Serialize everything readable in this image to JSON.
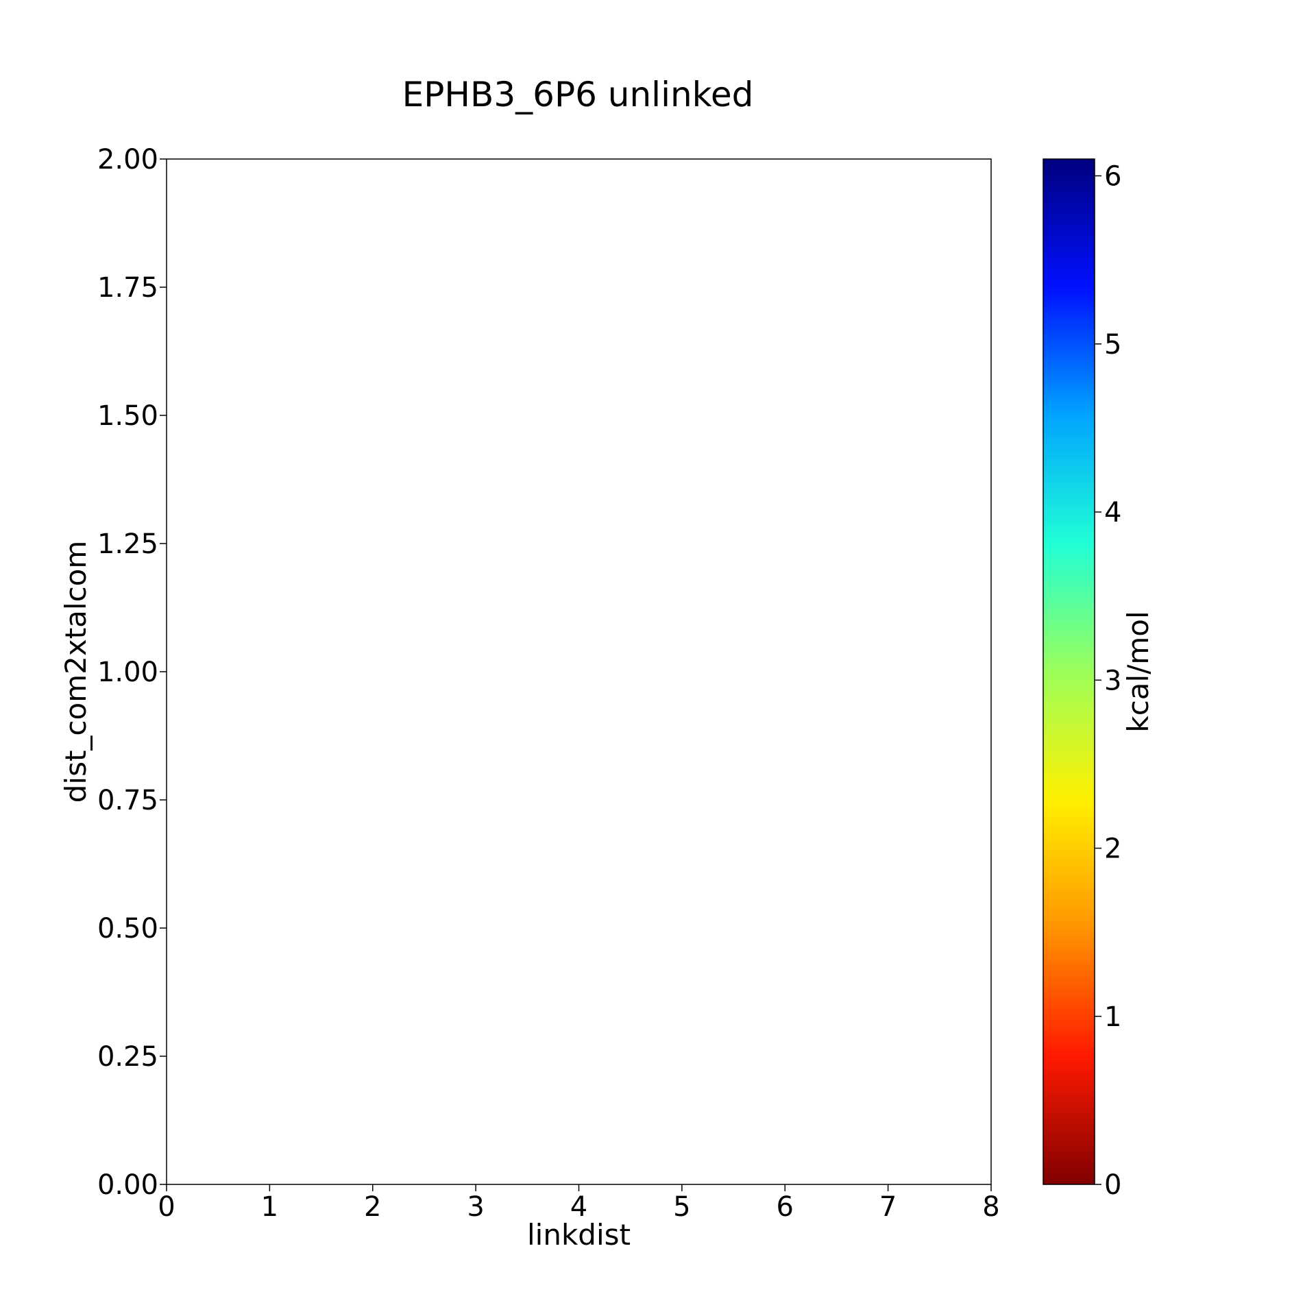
{
  "chart_data": {
    "type": "heatmap",
    "title": "EPHB3_6P6 unlinked",
    "xlabel": "linkdist",
    "ylabel": "dist_com2xtalcom",
    "xlim": [
      0,
      8
    ],
    "ylim": [
      0,
      2
    ],
    "xticks": [
      0,
      1,
      2,
      3,
      4,
      5,
      6,
      7,
      8
    ],
    "xtick_labels": [
      "0",
      "1",
      "2",
      "3",
      "4",
      "5",
      "6",
      "7",
      "8"
    ],
    "yticks": [
      0,
      0.25,
      0.5,
      0.75,
      1.0,
      1.25,
      1.5,
      1.75,
      2.0
    ],
    "ytick_labels": [
      "0.00",
      "0.25",
      "0.50",
      "0.75",
      "1.00",
      "1.25",
      "1.50",
      "1.75",
      "2.00"
    ],
    "values": [],
    "grid": false,
    "colorbar": {
      "label": "kcal/mol",
      "colormap": "jet_r",
      "range": [
        0,
        6.1
      ],
      "ticks": [
        0,
        1,
        2,
        3,
        4,
        5,
        6
      ],
      "tick_labels": [
        "0",
        "1",
        "2",
        "3",
        "4",
        "5",
        "6"
      ],
      "colors": [
        "#800000",
        "#ff1a00",
        "#ff9400",
        "#fff000",
        "#9cff5a",
        "#20ffd6",
        "#00a4ff",
        "#0010ff",
        "#00007f"
      ]
    }
  }
}
